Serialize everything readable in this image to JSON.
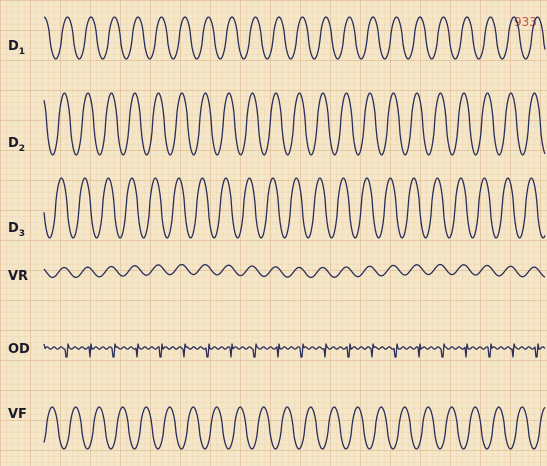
{
  "stamp": "933",
  "leads": [
    {
      "label": "D",
      "sub": "1"
    },
    {
      "label": "D",
      "sub": "2"
    },
    {
      "label": "D",
      "sub": "3"
    },
    {
      "label": "VR"
    },
    {
      "label": "OD"
    },
    {
      "label": "VF"
    }
  ]
}
